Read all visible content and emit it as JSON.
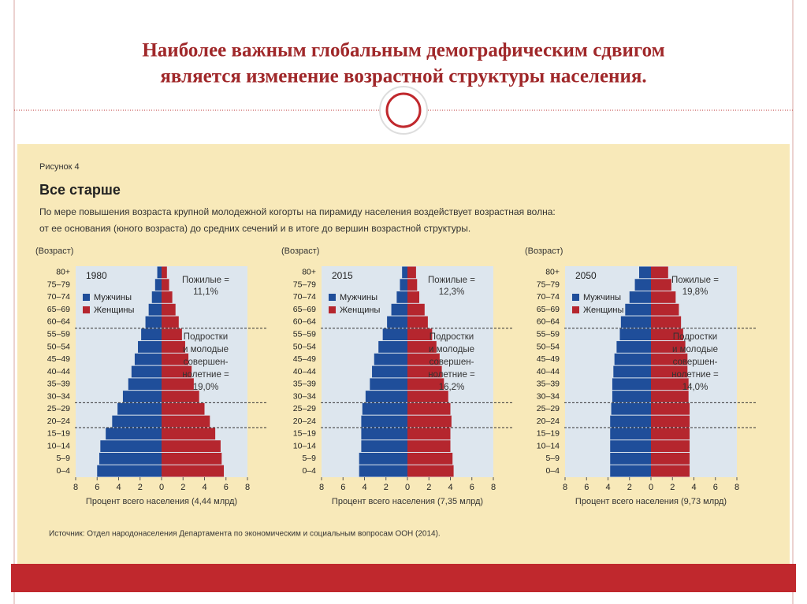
{
  "title_lines": [
    "Наиболее важным глобальным демографическим сдвигом",
    "является изменение возрастной структуры населения."
  ],
  "figure_label": "Рисунок 4",
  "figure_title": "Все старше",
  "description_lines": [
    "По мере повышения возраста крупной молодежной когорты на пирамиду населения воздействует возрастная волна:",
    "от ее основания (юного возраста) до средних сечений и в итоге до вершин возрастной структуры."
  ],
  "source": "Источник: Отдел народонаселения Департамента по экономическим и социальным вопросам ООН (2014).",
  "chart_data": [
    {
      "type": "pyramid",
      "title": "1980",
      "y_label": "(Возраст)",
      "x_label": "Процент всего населения (4,44 млрд)",
      "categories": [
        "0–4",
        "5–9",
        "10–14",
        "15–19",
        "20–24",
        "25–29",
        "30–34",
        "35–39",
        "40–44",
        "45–49",
        "50–54",
        "55–59",
        "60–64",
        "65–69",
        "70–74",
        "75–79",
        "80+"
      ],
      "series": [
        {
          "name": "Мужчины",
          "color": "#1f4e9a",
          "values": [
            6.0,
            5.8,
            5.7,
            5.2,
            4.6,
            4.1,
            3.6,
            3.1,
            2.8,
            2.5,
            2.2,
            1.9,
            1.5,
            1.2,
            0.9,
            0.6,
            0.4
          ]
        },
        {
          "name": "Женщины",
          "color": "#b5262e",
          "values": [
            5.8,
            5.6,
            5.5,
            5.0,
            4.5,
            4.0,
            3.5,
            3.0,
            2.8,
            2.5,
            2.2,
            1.9,
            1.6,
            1.3,
            1.0,
            0.7,
            0.5
          ]
        }
      ],
      "xlim": [
        -8,
        8
      ],
      "xticks": [
        {
          "value": -8,
          "label": "8"
        },
        {
          "value": -6,
          "label": "6"
        },
        {
          "value": -4,
          "label": "4"
        },
        {
          "value": -2,
          "label": "2"
        },
        0,
        2,
        4,
        6,
        8
      ],
      "annotations": [
        [
          "Пожилые =",
          "11,1%"
        ],
        [
          "Подростки",
          "и молодые",
          "совершен-",
          "нолетние =",
          "19,0%"
        ]
      ]
    },
    {
      "type": "pyramid",
      "title": "2015",
      "y_label": "(Возраст)",
      "x_label": "Процент всего населения (7,35 млрд)",
      "categories": [
        "0–4",
        "5–9",
        "10–14",
        "15–19",
        "20–24",
        "25–29",
        "30–34",
        "35–39",
        "40–44",
        "45–49",
        "50–54",
        "55–59",
        "60–64",
        "65–69",
        "70–74",
        "75–79",
        "80+"
      ],
      "series": [
        {
          "name": "Мужчины",
          "color": "#1f4e9a",
          "values": [
            4.5,
            4.5,
            4.3,
            4.3,
            4.3,
            4.2,
            3.9,
            3.5,
            3.3,
            3.1,
            2.7,
            2.3,
            1.9,
            1.5,
            1.0,
            0.7,
            0.5
          ]
        },
        {
          "name": "Женщины",
          "color": "#b5262e",
          "values": [
            4.3,
            4.2,
            4.0,
            4.0,
            4.1,
            4.0,
            3.8,
            3.4,
            3.2,
            3.0,
            2.7,
            2.3,
            1.9,
            1.6,
            1.1,
            0.9,
            0.8
          ]
        }
      ],
      "xlim": [
        -8,
        8
      ],
      "xticks": [
        {
          "value": -8,
          "label": "8"
        },
        {
          "value": -6,
          "label": "6"
        },
        {
          "value": -4,
          "label": "4"
        },
        {
          "value": -2,
          "label": "2"
        },
        0,
        2,
        4,
        6,
        8
      ],
      "annotations": [
        [
          "Пожилые =",
          "12,3%"
        ],
        [
          "Подростки",
          "и молодые",
          "совершен-",
          "нолетние =",
          "16,2%"
        ]
      ]
    },
    {
      "type": "pyramid",
      "title": "2050",
      "y_label": "(Возраст)",
      "x_label": "Процент всего населения (9,73 млрд)",
      "categories": [
        "0–4",
        "5–9",
        "10–14",
        "15–19",
        "20–24",
        "25–29",
        "30–34",
        "35–39",
        "40–44",
        "45–49",
        "50–54",
        "55–59",
        "60–64",
        "65–69",
        "70–74",
        "75–79",
        "80+"
      ],
      "series": [
        {
          "name": "Мужчины",
          "color": "#1f4e9a",
          "values": [
            3.8,
            3.8,
            3.8,
            3.8,
            3.8,
            3.7,
            3.6,
            3.6,
            3.5,
            3.4,
            3.2,
            2.9,
            2.8,
            2.4,
            2.0,
            1.5,
            1.1
          ]
        },
        {
          "name": "Женщины",
          "color": "#b5262e",
          "values": [
            3.6,
            3.6,
            3.6,
            3.6,
            3.6,
            3.6,
            3.5,
            3.5,
            3.4,
            3.4,
            3.2,
            3.0,
            2.8,
            2.6,
            2.3,
            1.9,
            1.6
          ]
        }
      ],
      "xlim": [
        -8,
        8
      ],
      "xticks": [
        {
          "value": -8,
          "label": "8"
        },
        {
          "value": -6,
          "label": "6"
        },
        {
          "value": -4,
          "label": "4"
        },
        {
          "value": -2,
          "label": "2"
        },
        0,
        2,
        4,
        6,
        8
      ],
      "annotations": [
        [
          "Пожилые =",
          "19,8%"
        ],
        [
          "Подростки",
          "и молодые",
          "совершен-",
          "нолетние =",
          "14,0%"
        ]
      ]
    }
  ]
}
